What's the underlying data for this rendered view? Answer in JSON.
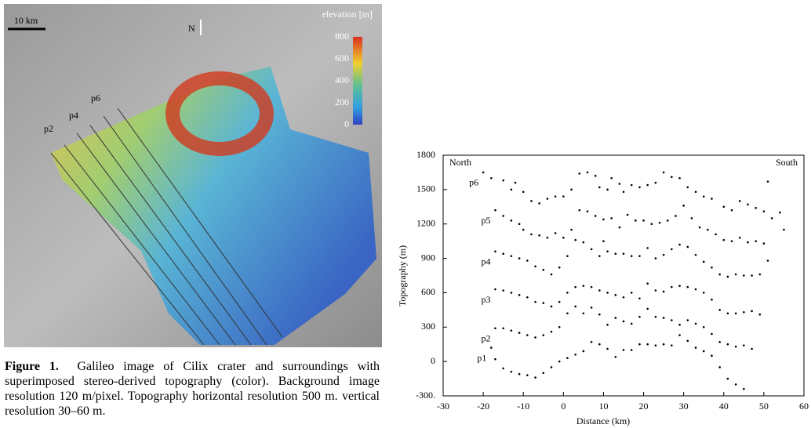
{
  "image": {
    "scale_bar": "10 km",
    "north": "N",
    "colorbar_title": "elevation [m]",
    "colorbar_ticks": [
      800,
      600,
      400,
      200,
      0
    ],
    "profile_labels": [
      "p6",
      "p4",
      "p2"
    ]
  },
  "caption": {
    "label": "Figure 1.",
    "text": "Galileo image of Cilix crater and surroundings with superimposed stereo-derived topography (color). Background image resolution 120 m/pixel. Topography horizontal resolution 500 m. vertical resolution 30–60 m."
  },
  "chart_data": {
    "type": "scatter",
    "xlabel": "Distance (km)",
    "ylabel": "Topography (m)",
    "annotations": [
      "North",
      "South"
    ],
    "xlim": [
      -30,
      60
    ],
    "xticks": [
      -30,
      -20,
      -10,
      0,
      10,
      20,
      30,
      40,
      50,
      60
    ],
    "ylim": [
      -300,
      1800
    ],
    "yticks": [
      {
        "value": -300,
        "label": "-300."
      },
      0,
      300,
      600,
      900,
      1200,
      1500,
      1800
    ],
    "series": [
      {
        "name": "p6",
        "color": "#000000",
        "x": [
          -20,
          -18,
          -15,
          -13,
          -12,
          -10,
          -8,
          -6,
          -4,
          -2,
          0,
          2,
          4,
          6,
          8,
          9,
          11,
          12,
          14,
          15,
          17,
          19,
          21,
          23,
          25,
          27,
          29,
          31,
          33,
          35,
          37,
          40,
          42,
          44,
          46,
          48,
          50,
          51
        ],
        "values": [
          1650,
          1600,
          1580,
          1500,
          1560,
          1480,
          1400,
          1380,
          1420,
          1440,
          1440,
          1500,
          1640,
          1650,
          1620,
          1520,
          1500,
          1600,
          1550,
          1480,
          1540,
          1520,
          1540,
          1560,
          1650,
          1610,
          1600,
          1520,
          1480,
          1440,
          1420,
          1350,
          1320,
          1400,
          1370,
          1340,
          1310,
          1570
        ]
      },
      {
        "name": "p5",
        "color": "#000000",
        "x": [
          -17,
          -15,
          -13,
          -11,
          -10,
          -8,
          -6,
          -4,
          -2,
          0,
          2,
          4,
          6,
          8,
          10,
          12,
          14,
          16,
          18,
          20,
          22,
          24,
          26,
          28,
          30,
          32,
          34,
          36,
          38,
          40,
          42,
          44,
          46,
          48,
          50,
          52,
          54,
          55
        ],
        "values": [
          1320,
          1270,
          1230,
          1200,
          1150,
          1110,
          1100,
          1080,
          1120,
          1080,
          1150,
          1320,
          1310,
          1270,
          1240,
          1250,
          1170,
          1280,
          1230,
          1230,
          1200,
          1210,
          1230,
          1270,
          1360,
          1250,
          1170,
          1150,
          1110,
          1060,
          1050,
          1080,
          1040,
          1050,
          1030,
          1250,
          1300,
          1150
        ]
      },
      {
        "name": "p4",
        "color": "#000000",
        "x": [
          -17,
          -15,
          -13,
          -11,
          -9,
          -7,
          -5,
          -3,
          -1,
          1,
          3,
          5,
          7,
          9,
          10,
          11,
          13,
          15,
          17,
          19,
          21,
          23,
          25,
          27,
          29,
          31,
          33,
          35,
          37,
          39,
          41,
          43,
          45,
          47,
          49,
          51
        ],
        "values": [
          960,
          940,
          920,
          900,
          880,
          830,
          800,
          760,
          820,
          920,
          1060,
          1040,
          980,
          920,
          1050,
          960,
          940,
          940,
          920,
          920,
          990,
          900,
          930,
          980,
          1020,
          1000,
          930,
          870,
          820,
          760,
          740,
          760,
          750,
          750,
          760,
          880
        ]
      },
      {
        "name": "p3",
        "color": "#000000",
        "x": [
          -17,
          -15,
          -13,
          -11,
          -9,
          -7,
          -5,
          -3,
          -1,
          1,
          3,
          5,
          7,
          9,
          11,
          13,
          15,
          17,
          19,
          21,
          23,
          25,
          27,
          29,
          31,
          33,
          35,
          37,
          39,
          41,
          43,
          45,
          47,
          49
        ],
        "values": [
          630,
          620,
          600,
          580,
          560,
          520,
          510,
          480,
          520,
          600,
          650,
          660,
          650,
          620,
          600,
          580,
          560,
          600,
          550,
          680,
          620,
          610,
          650,
          660,
          650,
          630,
          600,
          540,
          450,
          420,
          420,
          430,
          440,
          410
        ]
      },
      {
        "name": "p2",
        "color": "#000000",
        "x": [
          -17,
          -15,
          -13,
          -11,
          -9,
          -7,
          -5,
          -3,
          -1,
          1,
          3,
          5,
          7,
          9,
          11,
          13,
          15,
          17,
          19,
          21,
          23,
          25,
          27,
          29,
          31,
          33,
          35,
          37,
          39,
          41,
          43,
          45,
          47
        ],
        "values": [
          290,
          290,
          270,
          250,
          230,
          210,
          230,
          260,
          300,
          420,
          480,
          420,
          470,
          410,
          320,
          380,
          350,
          330,
          390,
          460,
          390,
          380,
          360,
          320,
          360,
          330,
          300,
          240,
          170,
          150,
          130,
          140,
          110
        ]
      },
      {
        "name": "p1",
        "color": "#000000",
        "x": [
          -18,
          -17,
          -15,
          -13,
          -11,
          -9,
          -7,
          -5,
          -3,
          -1,
          1,
          3,
          5,
          7,
          9,
          11,
          13,
          15,
          17,
          19,
          21,
          23,
          25,
          27,
          29,
          31,
          33,
          35,
          37,
          39,
          41,
          43,
          45
        ],
        "values": [
          120,
          20,
          -60,
          -90,
          -110,
          -120,
          -140,
          -100,
          -50,
          0,
          30,
          60,
          90,
          170,
          150,
          110,
          40,
          100,
          100,
          150,
          150,
          140,
          150,
          140,
          230,
          180,
          120,
          90,
          50,
          -50,
          -150,
          -200,
          -240
        ]
      }
    ]
  }
}
